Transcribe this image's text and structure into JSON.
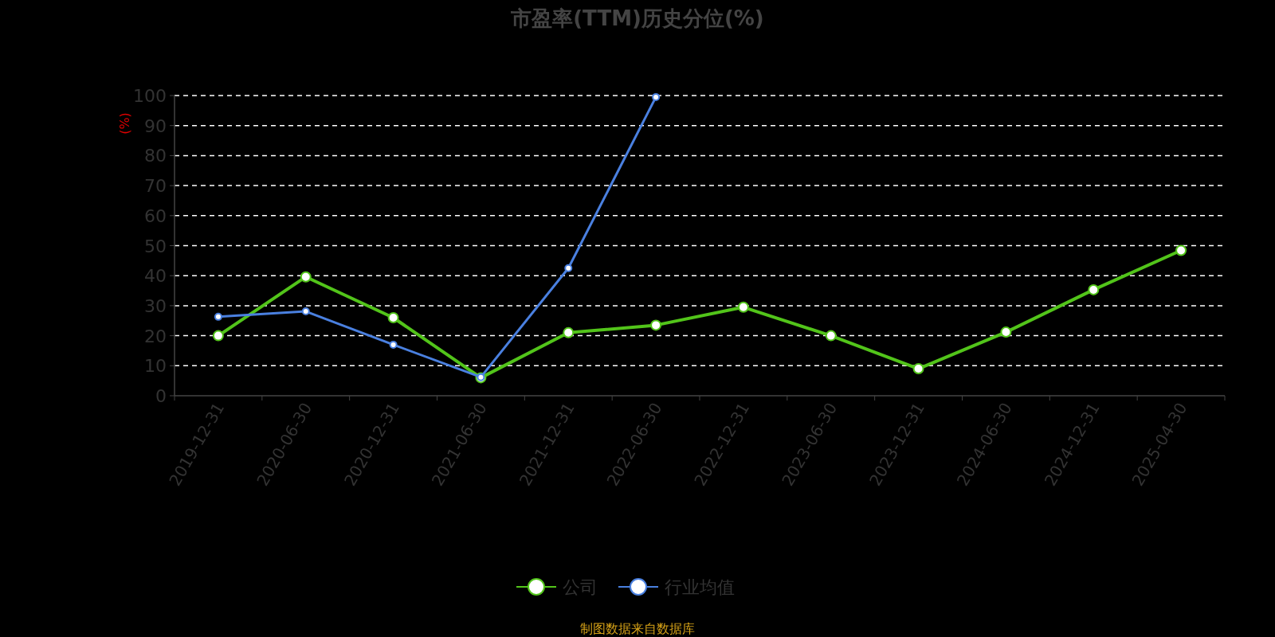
{
  "chart_data": {
    "type": "line",
    "title": "市盈率(TTM)历史分位(%)",
    "ylabel": "(%)",
    "categories": [
      "2019-12-31",
      "2020-06-30",
      "2020-12-31",
      "2021-06-30",
      "2021-12-31",
      "2022-06-30",
      "2022-12-31",
      "2023-06-30",
      "2023-12-31",
      "2024-06-30",
      "2024-12-31",
      "2025-04-30"
    ],
    "series": [
      {
        "name": "公司",
        "color": "#52c41a",
        "values": [
          20,
          39.6,
          26,
          6,
          21,
          23.5,
          29.5,
          20,
          9,
          21.2,
          35.3,
          48.4
        ]
      },
      {
        "name": "行业均值",
        "color": "#4a80e0",
        "values": [
          26.3,
          28.1,
          17,
          6.2,
          42.5,
          99.5,
          null,
          null,
          null,
          null,
          null,
          null
        ]
      }
    ],
    "ylim": [
      0,
      100
    ],
    "yticks": [
      0,
      10,
      20,
      30,
      40,
      50,
      60,
      70,
      80,
      90,
      100
    ],
    "grid": "y",
    "legend": "bottom",
    "marker": "circle",
    "line_style": "solid",
    "annotations": [
      "制图数据来自数据库"
    ]
  }
}
